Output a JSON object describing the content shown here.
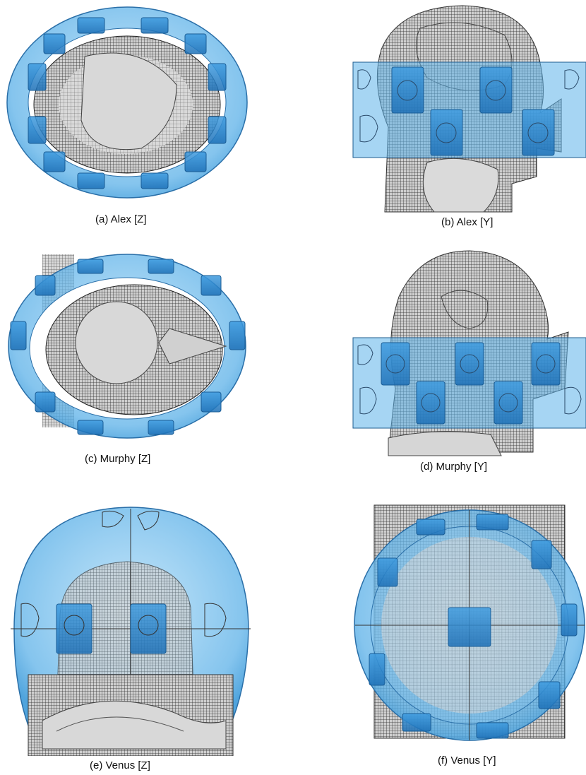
{
  "figure": {
    "panels": [
      {
        "id": "a",
        "caption": "(a) Alex [Z]"
      },
      {
        "id": "b",
        "caption": "(b) Alex [Y]"
      },
      {
        "id": "c",
        "caption": "(c) Murphy [Z]"
      },
      {
        "id": "d",
        "caption": "(d) Murphy [Y]"
      },
      {
        "id": "e",
        "caption": "(e) Venus [Z]"
      },
      {
        "id": "f",
        "caption": "(f) Venus [Y]"
      }
    ]
  },
  "colors": {
    "coil_blue": "#4aa3e0",
    "coil_dark": "#1f7cc2",
    "tissue_gray": "#d6d6d6",
    "mesh_dark": "#3a3a3a",
    "outline": "#333333"
  }
}
